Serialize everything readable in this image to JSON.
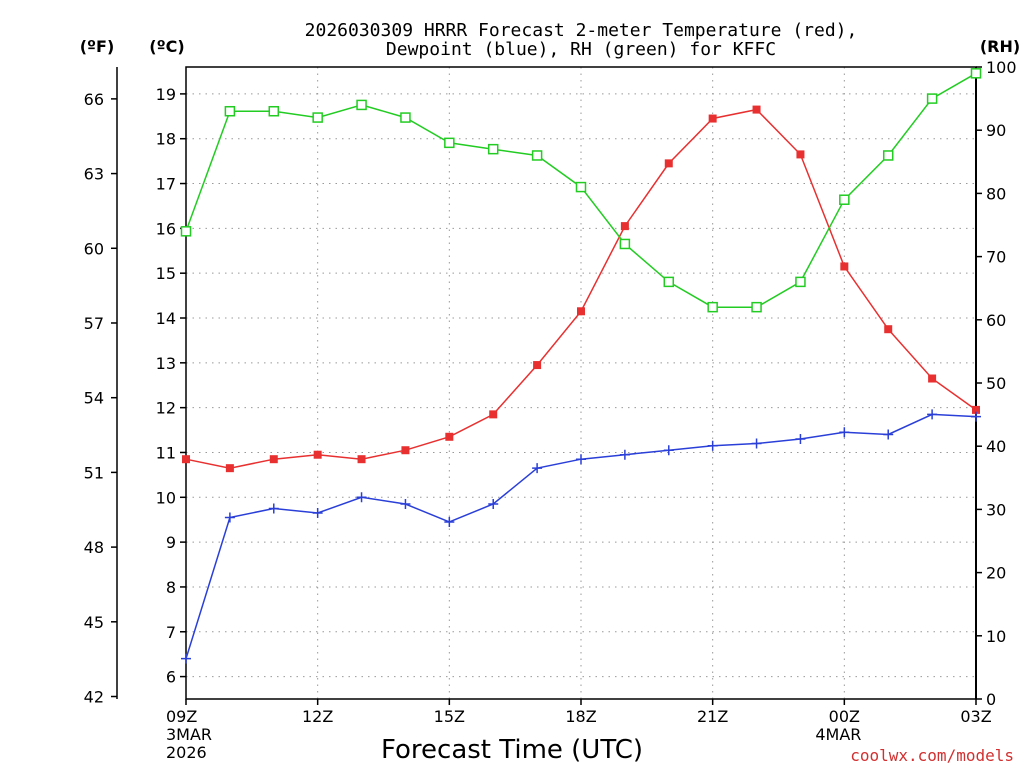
{
  "chart_data": {
    "type": "line",
    "title_line1": "2026030309 HRRR Forecast 2-meter Temperature (red),",
    "title_line2": "Dewpoint (blue), RH (green) for KFFC",
    "xlabel": "Forecast Time (UTC)",
    "left_outer_unit": "(ºF)",
    "left_inner_unit": "(ºC)",
    "right_unit": "(RH)",
    "credit": "coolwx.com/models",
    "x_hours": [
      0,
      1,
      2,
      3,
      4,
      5,
      6,
      7,
      8,
      9,
      10,
      11,
      12,
      13,
      14,
      15,
      16,
      17,
      18
    ],
    "x_tick_hours": [
      0,
      3,
      6,
      9,
      12,
      15,
      18
    ],
    "x_tick_labels": [
      "09Z",
      "12Z",
      "15Z",
      "18Z",
      "21Z",
      "00Z",
      "03Z"
    ],
    "x_subtitles": [
      {
        "hour": 0,
        "lines": [
          "3MAR",
          "2026"
        ]
      },
      {
        "hour": 15,
        "lines": [
          "4MAR"
        ]
      }
    ],
    "celsius_axis": {
      "range": [
        5.5,
        19.6
      ],
      "ticks": [
        6,
        7,
        8,
        9,
        10,
        11,
        12,
        13,
        14,
        15,
        16,
        17,
        18,
        19
      ]
    },
    "fahrenheit_axis": {
      "ticks": [
        42,
        45,
        48,
        51,
        54,
        57,
        60,
        63,
        66
      ]
    },
    "rh_axis": {
      "range": [
        0,
        100
      ],
      "ticks": [
        0,
        10,
        20,
        30,
        40,
        50,
        60,
        70,
        80,
        90,
        100
      ]
    },
    "grid": true,
    "series": [
      {
        "name": "Temperature",
        "color": "#e83030",
        "marker": "filled-square",
        "axis": "celsius",
        "values": [
          10.85,
          10.65,
          10.85,
          10.95,
          10.85,
          11.05,
          11.35,
          11.85,
          12.95,
          14.15,
          16.05,
          17.45,
          18.45,
          18.65,
          17.65,
          15.15,
          13.75,
          12.65,
          11.95
        ]
      },
      {
        "name": "Dewpoint",
        "color": "#2a3fd8",
        "marker": "plus",
        "axis": "celsius",
        "values": [
          6.4,
          9.55,
          9.75,
          9.65,
          10.0,
          9.85,
          9.45,
          9.85,
          10.65,
          10.85,
          10.95,
          11.05,
          11.15,
          11.2,
          11.3,
          11.45,
          11.4,
          11.85,
          11.8
        ]
      },
      {
        "name": "RH",
        "color": "#22cc22",
        "marker": "open-square",
        "axis": "rh",
        "values": [
          74,
          93,
          93,
          92,
          94,
          92,
          88,
          87,
          86,
          81,
          72,
          66,
          62,
          62,
          66,
          79,
          86,
          95,
          99
        ]
      }
    ]
  }
}
